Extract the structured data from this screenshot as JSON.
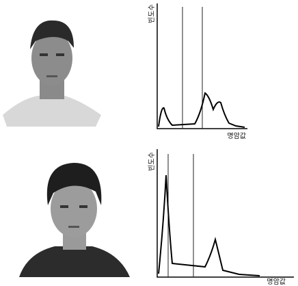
{
  "figure": {
    "panels": [
      {
        "y_label": "빈도수",
        "x_label": "명암값"
      },
      {
        "y_label": "빈도수",
        "x_label": "명암값"
      }
    ]
  }
}
